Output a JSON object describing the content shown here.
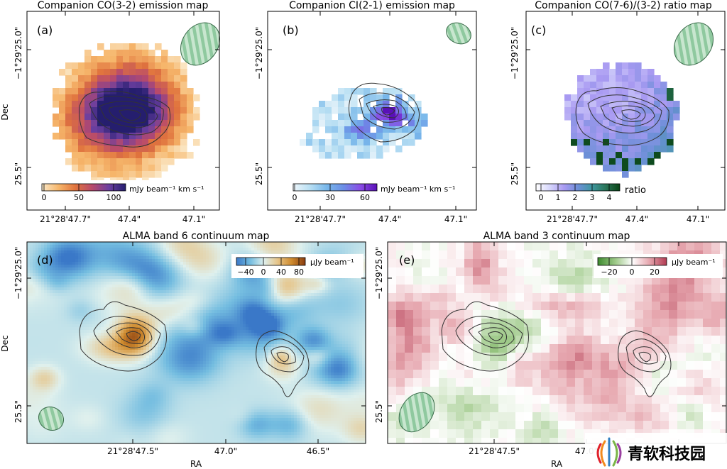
{
  "chart_data": [
    {
      "type": "heatmap",
      "panel": "(a)",
      "title": "Companion CO(3-2) emission map",
      "xlabel": "",
      "ylabel": "Dec",
      "x_ticks": [
        "21°28'47.7\"",
        "47.4\"",
        "47.1\""
      ],
      "y_ticks": [
        "−1°29'25.0\"",
        "25.5\""
      ],
      "colorbar": {
        "ticks": [
          "0",
          "50",
          "100"
        ],
        "label": "mJy beam⁻¹ km s⁻¹",
        "range": [
          0,
          120
        ],
        "colors": [
          "#fbe9c9",
          "#f6b66b",
          "#e0733d",
          "#b84a6c",
          "#6b3fa0",
          "#251e6e"
        ]
      },
      "beam": "top-right"
    },
    {
      "type": "heatmap",
      "panel": "(b)",
      "title": "Companion CI(2-1) emission map",
      "xlabel": "",
      "ylabel": "",
      "x_ticks": [
        "21°28'47.7\"",
        "47.4\"",
        "47.1\""
      ],
      "y_ticks": [
        "−1°29'25.0\"",
        "25.5\""
      ],
      "colorbar": {
        "ticks": [
          "0",
          "30",
          "60"
        ],
        "label": "mJy beam⁻¹ km s⁻¹",
        "range": [
          0,
          70
        ],
        "colors": [
          "#eef6fb",
          "#b8dff3",
          "#78b7ea",
          "#6b8ee6",
          "#8a4de6",
          "#5a10b8"
        ]
      },
      "beam": "top-right"
    },
    {
      "type": "heatmap",
      "panel": "(c)",
      "title": "Companion CO(7-6)/(3-2) ratio map",
      "xlabel": "",
      "ylabel": "",
      "x_ticks": [
        "21°28'47.7\"",
        "47.4\"",
        "47.1\""
      ],
      "y_ticks": [
        "−1°29'25.0\"",
        "25.5\""
      ],
      "colorbar": {
        "ticks": [
          "0",
          "1",
          "2",
          "3",
          "4"
        ],
        "label": "ratio",
        "range": [
          -0.3,
          4.7
        ],
        "colors": [
          "#ffffff",
          "#d6d6fb",
          "#a99af2",
          "#6d8fd8",
          "#3f97a0",
          "#2a7558",
          "#0a4516"
        ]
      },
      "beam": "top-right"
    },
    {
      "type": "heatmap",
      "panel": "(d)",
      "title": "ALMA band 6 continuum map",
      "xlabel": "RA",
      "ylabel": "Dec",
      "x_ticks": [
        "21°28'47.5\"",
        "47.0\"",
        "46.5\""
      ],
      "y_ticks": [
        "−1°29'25.0\"",
        "25.5\""
      ],
      "colorbar": {
        "ticks": [
          "−40",
          "0",
          "40",
          "80"
        ],
        "label": "μJy beam⁻¹",
        "range": [
          -60,
          95
        ],
        "colors": [
          "#3a78c8",
          "#74bde0",
          "#dff0ed",
          "#e6c488",
          "#cf8b2e",
          "#8a3d10"
        ]
      },
      "beam": "bottom-left"
    },
    {
      "type": "heatmap",
      "panel": "(e)",
      "title": "ALMA band 3 continuum map",
      "xlabel": "RA",
      "ylabel": "",
      "x_ticks": [
        "21°28'47.5\"",
        "47.0\""
      ],
      "y_ticks": [
        "−1°29'25.0\"",
        "25.5\""
      ],
      "colorbar": {
        "ticks": [
          "−20",
          "0",
          "20"
        ],
        "label": "μJy beam⁻¹",
        "range": [
          -30,
          30
        ],
        "colors": [
          "#3c8a2e",
          "#9cc886",
          "#ffffff",
          "#e6a6ae",
          "#b23a52"
        ]
      },
      "beam": "bottom-left"
    }
  ],
  "watermark": {
    "text": "青软科技园"
  }
}
